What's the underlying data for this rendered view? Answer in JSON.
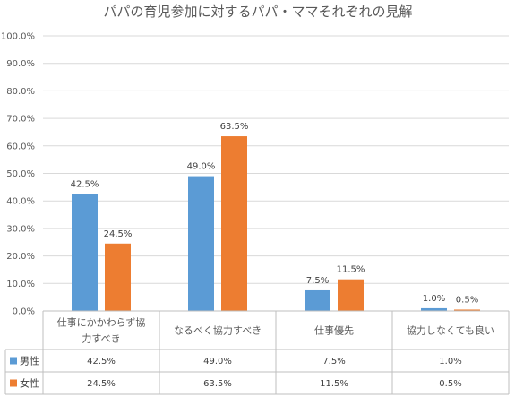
{
  "chart_data": {
    "type": "bar",
    "title": "パパの育児参加に対するパパ・ママそれぞれの見解",
    "categories": [
      [
        "仕事にかかわらず協",
        "力すべき"
      ],
      [
        "なるべく協力すべき"
      ],
      [
        "仕事優先"
      ],
      [
        "協力しなくても良い"
      ]
    ],
    "series": [
      {
        "name": "男性",
        "values": [
          42.5,
          49.0,
          7.5,
          1.0
        ],
        "labels": [
          "42.5%",
          "49.0%",
          "7.5%",
          "1.0%"
        ],
        "color": "#5b9bd5"
      },
      {
        "name": "女性",
        "values": [
          24.5,
          63.5,
          11.5,
          0.5
        ],
        "labels": [
          "24.5%",
          "63.5%",
          "11.5%",
          "0.5%"
        ],
        "color": "#ed7d31"
      }
    ],
    "y_ticks": [
      "0.0%",
      "10.0%",
      "20.0%",
      "30.0%",
      "40.0%",
      "50.0%",
      "60.0%",
      "70.0%",
      "80.0%",
      "90.0%",
      "100.0%"
    ],
    "ylim": [
      0,
      100
    ],
    "grid": true,
    "legend": "data-table"
  }
}
